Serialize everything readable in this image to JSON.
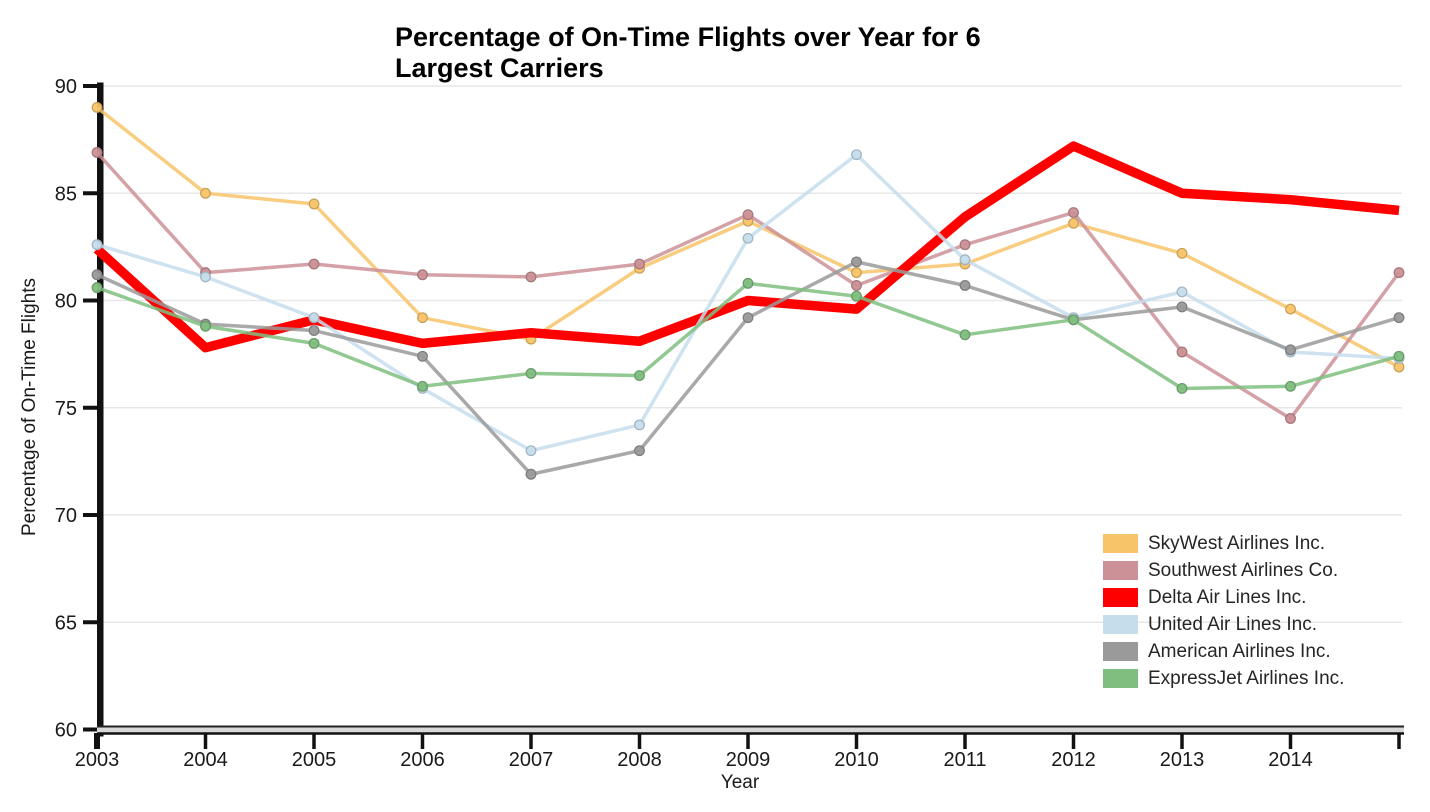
{
  "title": "Percentage of On-Time Flights over Year for 6 Largest Carriers",
  "chart_data": {
    "type": "line",
    "title": "Percentage of On-Time Flights over Year for 6 Largest Carriers",
    "xlabel": "Year",
    "ylabel": "Percentage of On-Time Flights",
    "x": [
      2003,
      2004,
      2005,
      2006,
      2007,
      2008,
      2009,
      2010,
      2011,
      2012,
      2013,
      2014,
      2015
    ],
    "x_tick_labels": [
      "2003",
      "2004",
      "2005",
      "2006",
      "2007",
      "2008",
      "2009",
      "2010",
      "2011",
      "2012",
      "2013",
      "2014",
      ""
    ],
    "yticks": [
      60,
      65,
      70,
      75,
      80,
      85,
      90
    ],
    "ylim": [
      60,
      90
    ],
    "grid": "horizontal",
    "legend_position": "inside lower right",
    "series": [
      {
        "name": "SkyWest Airlines Inc.",
        "color": "#F8C46A",
        "linewidth": 3.5,
        "marker": true,
        "values": [
          89.0,
          85.0,
          84.5,
          79.2,
          78.2,
          81.5,
          83.7,
          81.3,
          81.7,
          83.6,
          82.2,
          79.6,
          76.9
        ]
      },
      {
        "name": "Southwest Airlines Co.",
        "color": "#CB9196",
        "linewidth": 3.5,
        "marker": true,
        "values": [
          86.9,
          81.3,
          81.7,
          81.2,
          81.1,
          81.7,
          84.0,
          80.7,
          82.6,
          84.1,
          77.6,
          74.5,
          81.3
        ]
      },
      {
        "name": "Delta Air Lines Inc.",
        "color": "#FF0000",
        "linewidth": 9.5,
        "marker": false,
        "values": [
          82.4,
          77.8,
          79.1,
          78.0,
          78.5,
          78.1,
          80.0,
          79.6,
          83.9,
          87.2,
          85.0,
          84.7,
          84.2
        ]
      },
      {
        "name": "United Air Lines Inc.",
        "color": "#C6DDEC",
        "linewidth": 3.5,
        "marker": true,
        "values": [
          82.6,
          81.1,
          79.2,
          75.9,
          73.0,
          74.2,
          82.9,
          86.8,
          81.9,
          79.2,
          80.4,
          77.6,
          77.3
        ]
      },
      {
        "name": "American Airlines Inc.",
        "color": "#9A9A9A",
        "linewidth": 3.5,
        "marker": true,
        "values": [
          81.2,
          78.9,
          78.6,
          77.4,
          71.9,
          73.0,
          79.2,
          81.8,
          80.7,
          79.1,
          79.7,
          77.7,
          79.2
        ]
      },
      {
        "name": "ExpressJet Airlines Inc.",
        "color": "#7FBE7F",
        "linewidth": 3.5,
        "marker": true,
        "values": [
          80.6,
          78.8,
          78.0,
          76.0,
          76.6,
          76.5,
          80.8,
          80.2,
          78.4,
          79.1,
          75.9,
          76.0,
          77.4
        ]
      }
    ],
    "colors": {
      "gridline": "#e7e7e7",
      "axis": "#111111",
      "tick_label": "#1a1a1a"
    }
  }
}
